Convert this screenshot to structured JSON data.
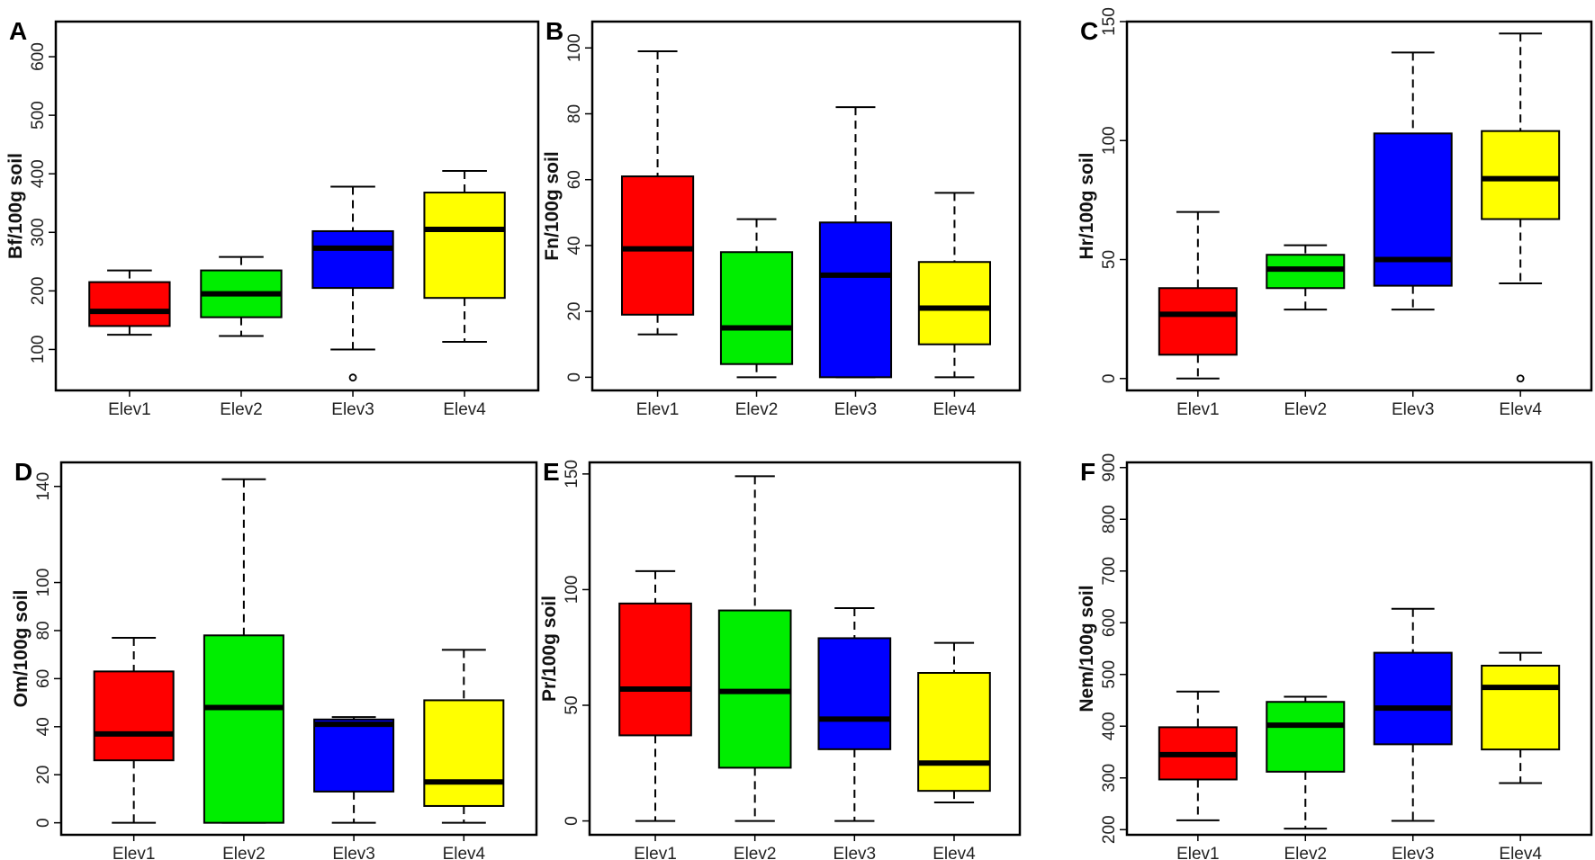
{
  "chart_data": [
    {
      "type": "boxplot",
      "letter": "A",
      "ylabel": "Bf/100g soil",
      "categories": [
        "Elev1",
        "Elev2",
        "Elev3",
        "Elev4"
      ],
      "ylim": [
        30,
        660
      ],
      "yticks": [
        100,
        200,
        300,
        400,
        500,
        600
      ],
      "colors": [
        "#ff0000",
        "#00ee00",
        "#0000ff",
        "#ffff00"
      ],
      "boxes": [
        {
          "min": 125,
          "q1": 140,
          "median": 165,
          "q3": 215,
          "max": 235,
          "outliers": []
        },
        {
          "min": 123,
          "q1": 155,
          "median": 195,
          "q3": 235,
          "max": 258,
          "outliers": []
        },
        {
          "min": 100,
          "q1": 205,
          "median": 273,
          "q3": 302,
          "max": 378,
          "outliers": [
            52
          ]
        },
        {
          "min": 113,
          "q1": 188,
          "median": 305,
          "q3": 368,
          "max": 405,
          "outliers": []
        }
      ]
    },
    {
      "type": "boxplot",
      "letter": "B",
      "ylabel": "Fn/100g soil",
      "categories": [
        "Elev1",
        "Elev2",
        "Elev3",
        "Elev4"
      ],
      "ylim": [
        -4,
        108
      ],
      "yticks": [
        0,
        20,
        40,
        60,
        80,
        100
      ],
      "colors": [
        "#ff0000",
        "#00ee00",
        "#0000ff",
        "#ffff00"
      ],
      "boxes": [
        {
          "min": 13,
          "q1": 19,
          "median": 39,
          "q3": 61,
          "max": 99,
          "outliers": []
        },
        {
          "min": 0,
          "q1": 4,
          "median": 15,
          "q3": 38,
          "max": 48,
          "outliers": []
        },
        {
          "min": 0,
          "q1": 0,
          "median": 31,
          "q3": 47,
          "max": 82,
          "outliers": []
        },
        {
          "min": 0,
          "q1": 10,
          "median": 21,
          "q3": 35,
          "max": 56,
          "outliers": []
        }
      ]
    },
    {
      "type": "boxplot",
      "letter": "C",
      "ylabel": "Hr/100g soil",
      "categories": [
        "Elev1",
        "Elev2",
        "Elev3",
        "Elev4"
      ],
      "ylim": [
        -5,
        150
      ],
      "yticks": [
        0,
        50,
        100,
        150
      ],
      "colors": [
        "#ff0000",
        "#00ee00",
        "#0000ff",
        "#ffff00"
      ],
      "boxes": [
        {
          "min": 0,
          "q1": 10,
          "median": 27,
          "q3": 38,
          "max": 70,
          "outliers": []
        },
        {
          "min": 29,
          "q1": 38,
          "median": 46,
          "q3": 52,
          "max": 56,
          "outliers": []
        },
        {
          "min": 29,
          "q1": 39,
          "median": 50,
          "q3": 103,
          "max": 137,
          "outliers": []
        },
        {
          "min": 40,
          "q1": 67,
          "median": 84,
          "q3": 104,
          "max": 145,
          "outliers": [
            0
          ]
        }
      ]
    },
    {
      "type": "boxplot",
      "letter": "D",
      "ylabel": "Om/100g soil",
      "categories": [
        "Elev1",
        "Elev2",
        "Elev3",
        "Elev4"
      ],
      "ylim": [
        -5,
        150
      ],
      "yticks": [
        0,
        20,
        40,
        60,
        80,
        100,
        140
      ],
      "colors": [
        "#ff0000",
        "#00ee00",
        "#0000ff",
        "#ffff00"
      ],
      "boxes": [
        {
          "min": 0,
          "q1": 26,
          "median": 37,
          "q3": 63,
          "max": 77,
          "outliers": []
        },
        {
          "min": 0,
          "q1": 0,
          "median": 48,
          "q3": 78,
          "max": 143,
          "outliers": []
        },
        {
          "min": 0,
          "q1": 13,
          "median": 41,
          "q3": 43,
          "max": 44,
          "outliers": []
        },
        {
          "min": 0,
          "q1": 7,
          "median": 17,
          "q3": 51,
          "max": 72,
          "outliers": []
        }
      ]
    },
    {
      "type": "boxplot",
      "letter": "E",
      "ylabel": "Pr/100g soil",
      "categories": [
        "Elev1",
        "Elev2",
        "Elev3",
        "Elev4"
      ],
      "ylim": [
        -6,
        155
      ],
      "yticks": [
        0,
        50,
        100,
        150
      ],
      "colors": [
        "#ff0000",
        "#00ee00",
        "#0000ff",
        "#ffff00"
      ],
      "boxes": [
        {
          "min": 0,
          "q1": 37,
          "median": 57,
          "q3": 94,
          "max": 108,
          "outliers": []
        },
        {
          "min": 0,
          "q1": 23,
          "median": 56,
          "q3": 91,
          "max": 149,
          "outliers": []
        },
        {
          "min": 0,
          "q1": 31,
          "median": 44,
          "q3": 79,
          "max": 92,
          "outliers": []
        },
        {
          "min": 8,
          "q1": 13,
          "median": 25,
          "q3": 64,
          "max": 77,
          "outliers": []
        }
      ]
    },
    {
      "type": "boxplot",
      "letter": "F",
      "ylabel": "Nem/100g soil",
      "categories": [
        "Elev1",
        "Elev2",
        "Elev3",
        "Elev4"
      ],
      "ylim": [
        190,
        910
      ],
      "yticks": [
        200,
        300,
        400,
        500,
        600,
        700,
        800,
        900
      ],
      "colors": [
        "#ff0000",
        "#00ee00",
        "#0000ff",
        "#ffff00"
      ],
      "boxes": [
        {
          "min": 218,
          "q1": 297,
          "median": 345,
          "q3": 398,
          "max": 467,
          "outliers": []
        },
        {
          "min": 202,
          "q1": 312,
          "median": 402,
          "q3": 447,
          "max": 457,
          "outliers": []
        },
        {
          "min": 217,
          "q1": 365,
          "median": 435,
          "q3": 542,
          "max": 627,
          "outliers": []
        },
        {
          "min": 290,
          "q1": 355,
          "median": 475,
          "q3": 517,
          "max": 542,
          "outliers": []
        }
      ]
    }
  ]
}
